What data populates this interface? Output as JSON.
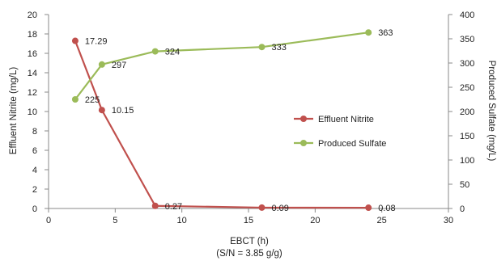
{
  "chart_data": {
    "type": "line",
    "xlabel": "EBCT (h)",
    "xlabel_sub": "(S/N = 3.85 g/g)",
    "ylabel_left": "Effluent Nitrite (mg/L)",
    "ylabel_right": "Produced Sulfate (mg/L)",
    "xlim": [
      0,
      30
    ],
    "ylim_left": [
      0,
      20
    ],
    "ylim_right": [
      0,
      400
    ],
    "xticks": [
      0,
      5,
      10,
      15,
      20,
      25,
      30
    ],
    "yticks_left": [
      0,
      2,
      4,
      6,
      8,
      10,
      12,
      14,
      16,
      18,
      20
    ],
    "yticks_right": [
      0,
      50,
      100,
      150,
      200,
      250,
      300,
      350,
      400
    ],
    "grid": false,
    "legend_position": "right-middle",
    "series": [
      {
        "name": "Effluent Nitrite",
        "axis": "left",
        "color": "#c0504d",
        "x": [
          2,
          4,
          8,
          16,
          24
        ],
        "y": [
          17.29,
          10.15,
          0.27,
          0.09,
          0.08
        ],
        "labels": [
          "17.29",
          "10.15",
          "0.27",
          "0.09",
          "0.08"
        ]
      },
      {
        "name": "Produced Sulfate",
        "axis": "right",
        "color": "#9bbb59",
        "x": [
          2,
          4,
          8,
          16,
          24
        ],
        "y": [
          225,
          297,
          324,
          333,
          363
        ],
        "labels": [
          "225",
          "297",
          "324",
          "333",
          "363"
        ]
      }
    ]
  }
}
